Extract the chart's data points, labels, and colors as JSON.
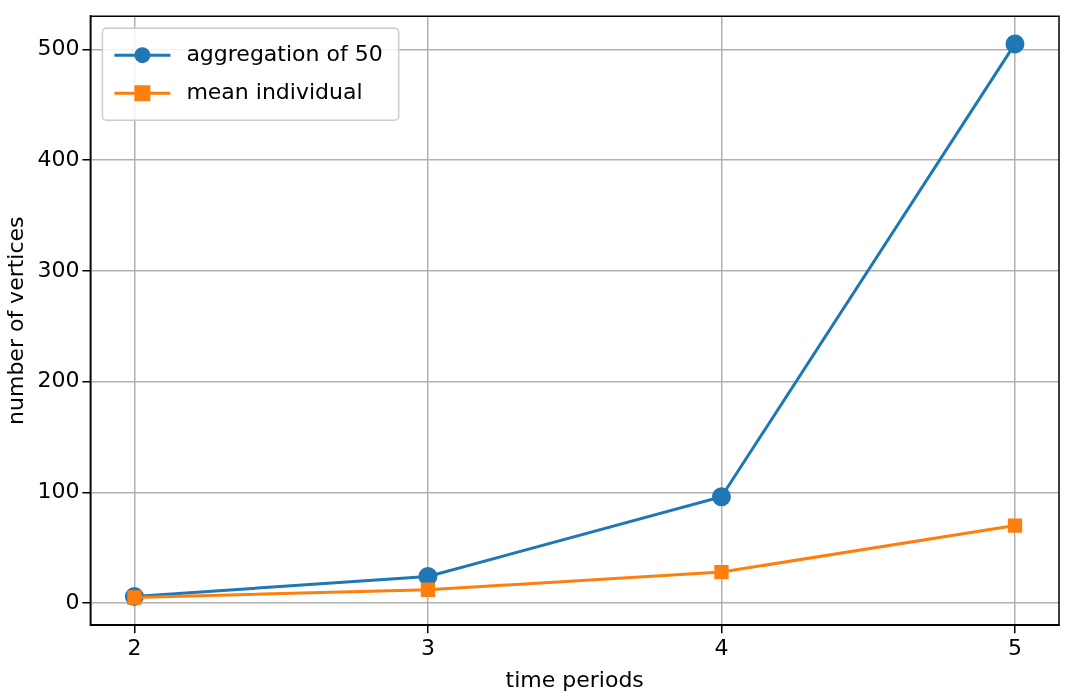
{
  "chart_data": {
    "type": "line",
    "xlabel": "time periods",
    "ylabel": "number of vertices",
    "x": [
      2,
      3,
      4,
      5
    ],
    "series": [
      {
        "name": "aggregation of 50",
        "color": "#1f77b4",
        "marker": "circle",
        "values": [
          6,
          24,
          96,
          505
        ]
      },
      {
        "name": "mean individual",
        "color": "#ff7f0e",
        "marker": "square",
        "values": [
          5,
          12,
          28,
          70
        ]
      }
    ],
    "xlim": [
      1.85,
      5.15
    ],
    "xticks": [
      2,
      3,
      4,
      5
    ],
    "ylim": [
      -20,
      530
    ],
    "yticks": [
      0,
      100,
      200,
      300,
      400,
      500
    ],
    "grid": true,
    "legend": "top left",
    "line_style": "solid"
  }
}
